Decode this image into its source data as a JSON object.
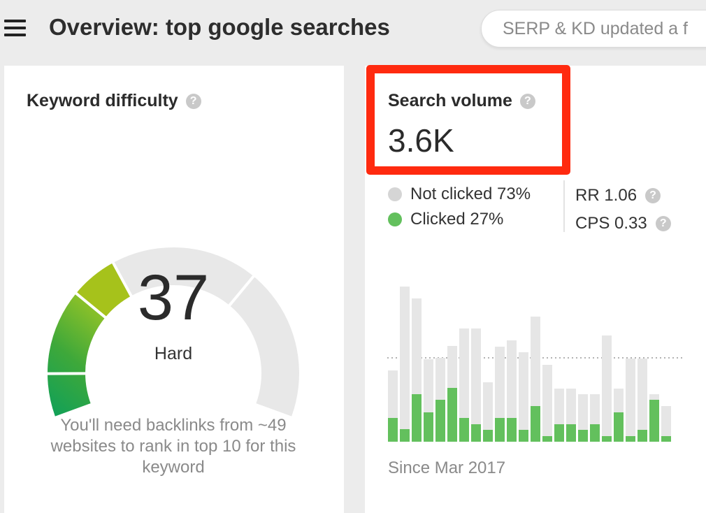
{
  "header": {
    "title": "Overview: top google searches",
    "update_text": "SERP & KD updated a f"
  },
  "keyword_difficulty": {
    "title": "Keyword difficulty",
    "value": "37",
    "label": "Hard",
    "description": "You'll need backlinks from ~49 websites to rank in top 10 for this keyword",
    "gauge_fraction": 0.37
  },
  "search_volume": {
    "title": "Search volume",
    "value": "3.6K",
    "legend": {
      "not_clicked": "Not clicked 73%",
      "clicked": "Clicked 27%"
    },
    "rr": "RR 1.06",
    "cps": "CPS 0.33",
    "since": "Since Mar 2017"
  },
  "colors": {
    "clicked": "#63c05d",
    "not_clicked": "#e6e6e6",
    "highlight": "#ff2a0f",
    "gauge_track": "#e8e8e8"
  },
  "chart_data": {
    "type": "bar",
    "series": [
      {
        "name": "Clicked",
        "values": [
          34,
          18,
          68,
          42,
          60,
          77,
          34,
          25,
          17,
          34,
          34,
          17,
          51,
          8,
          25,
          25,
          17,
          25,
          8,
          42,
          8,
          17,
          60,
          8
        ]
      },
      {
        "name": "Not clicked",
        "values": [
          68,
          204,
          137,
          76,
          60,
          60,
          128,
          137,
          68,
          102,
          111,
          111,
          128,
          102,
          51,
          51,
          51,
          43,
          144,
          34,
          111,
          102,
          8,
          43
        ]
      }
    ],
    "reference_line": 120
  }
}
